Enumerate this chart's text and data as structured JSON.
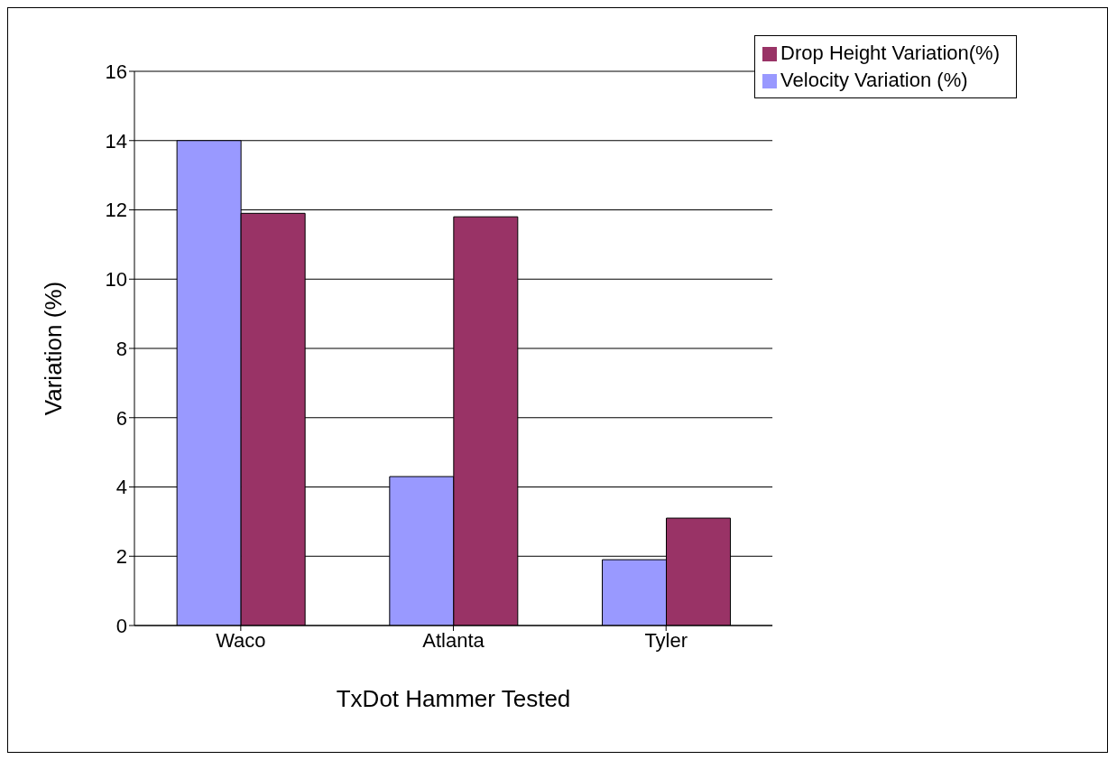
{
  "chart_data": {
    "type": "bar",
    "xlabel": "TxDot Hammer Tested",
    "ylabel": "Variation (%)",
    "categories": [
      "Waco",
      "Atlanta",
      "Tyler"
    ],
    "series": [
      {
        "name": "Velocity Variation (%)",
        "color": "#9999ff",
        "values": [
          14,
          4.3,
          1.9
        ]
      },
      {
        "name": "Drop Height Variation(%)",
        "color": "#993366",
        "values": [
          11.9,
          11.8,
          3.1
        ]
      }
    ],
    "ylim": [
      0,
      16
    ],
    "yticks": [
      0,
      2,
      4,
      6,
      8,
      10,
      12,
      14,
      16
    ],
    "grid": "y",
    "legend": "top right"
  }
}
